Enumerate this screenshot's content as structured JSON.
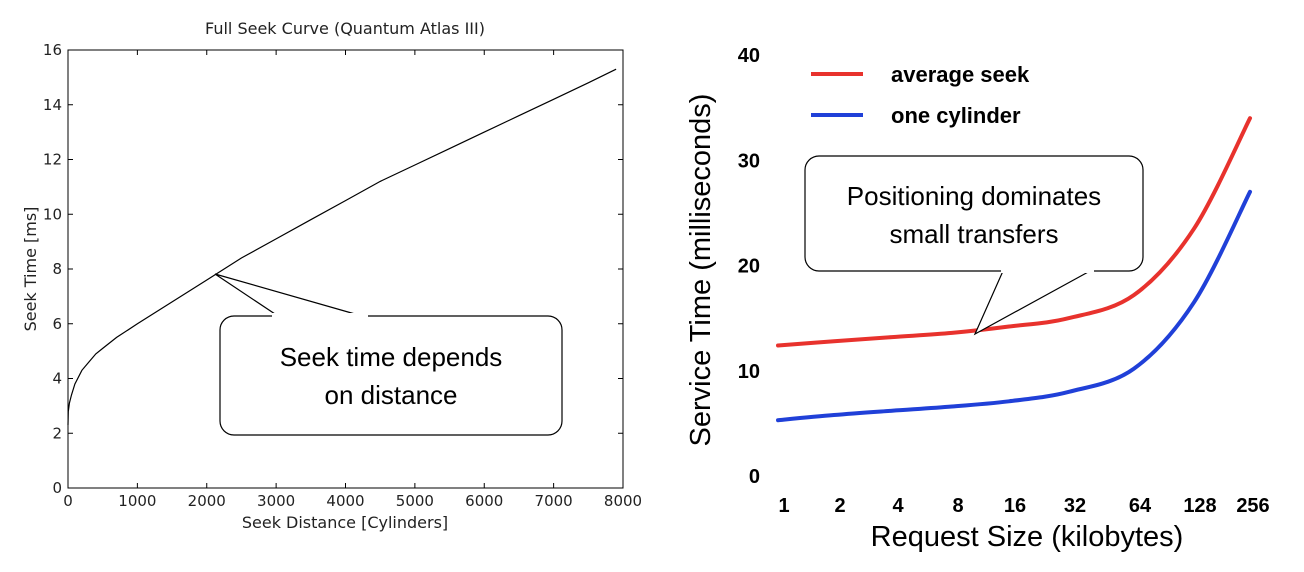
{
  "chart_data": [
    {
      "type": "line",
      "title": "Full Seek Curve (Quantum Atlas III)",
      "xlabel": "Seek Distance [Cylinders]",
      "ylabel": "Seek Time [ms]",
      "xlim": [
        0,
        8000
      ],
      "ylim": [
        0,
        16
      ],
      "xticks": [
        "0",
        "1000",
        "2000",
        "3000",
        "4000",
        "5000",
        "6000",
        "7000",
        "8000"
      ],
      "yticks": [
        "0",
        "2",
        "4",
        "6",
        "8",
        "10",
        "12",
        "14",
        "16"
      ],
      "series": [
        {
          "x": [
            0,
            5,
            20,
            50,
            100,
            200,
            300,
            400,
            500,
            700,
            1000,
            1500,
            2000,
            2500,
            3000,
            3500,
            4000,
            4500,
            5000,
            5500,
            6000,
            6500,
            7000,
            7500,
            7900
          ],
          "y": [
            2.3,
            2.8,
            3.1,
            3.4,
            3.8,
            4.3,
            4.6,
            4.9,
            5.1,
            5.5,
            6.0,
            6.8,
            7.6,
            8.4,
            9.1,
            9.8,
            10.5,
            11.2,
            11.8,
            12.4,
            13.0,
            13.6,
            14.2,
            14.8,
            15.3
          ]
        }
      ],
      "color": "#000000",
      "annotation": {
        "line1": "Seek time depends",
        "line2": "on distance"
      }
    },
    {
      "type": "line",
      "xlabel": "Request Size (kilobytes)",
      "ylabel": "Service Time (milliseconds)",
      "ylim": [
        0,
        40
      ],
      "categories": [
        "1",
        "2",
        "4",
        "8",
        "16",
        "32",
        "64",
        "128",
        "256"
      ],
      "yticks": [
        "0",
        "10",
        "20",
        "30",
        "40"
      ],
      "series": [
        {
          "name": "average seek",
          "color": "#e8322d",
          "values": [
            12.4,
            12.8,
            13.2,
            13.6,
            14.2,
            15.0,
            17.2,
            23.5,
            34.0
          ]
        },
        {
          "name": "one cylinder",
          "color": "#2040d8",
          "values": [
            5.3,
            5.8,
            6.2,
            6.6,
            7.1,
            8.0,
            10.2,
            16.5,
            27.0
          ]
        }
      ],
      "legend": "top-left",
      "annotation": {
        "line1": "Positioning dominates",
        "line2": "small transfers"
      }
    }
  ]
}
